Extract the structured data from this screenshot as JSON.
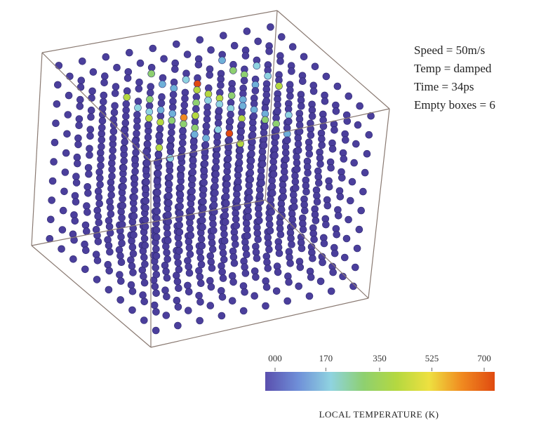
{
  "annotations": [
    "Speed = 50m/s",
    "Temp = damped",
    "Time = 34ps",
    "Empty boxes = 6"
  ],
  "colorbar": {
    "label": "LOCAL TEMPERATURE  (K)",
    "lim": [
      0,
      700
    ],
    "ticks": [
      {
        "value": 0,
        "label": "000"
      },
      170,
      350,
      525,
      700
    ],
    "colors": [
      "#5a4fae",
      "#6f8fd8",
      "#8fd3e0",
      "#8ed070",
      "#b4d840",
      "#eee040",
      "#f08a20",
      "#e04a10"
    ]
  }
}
